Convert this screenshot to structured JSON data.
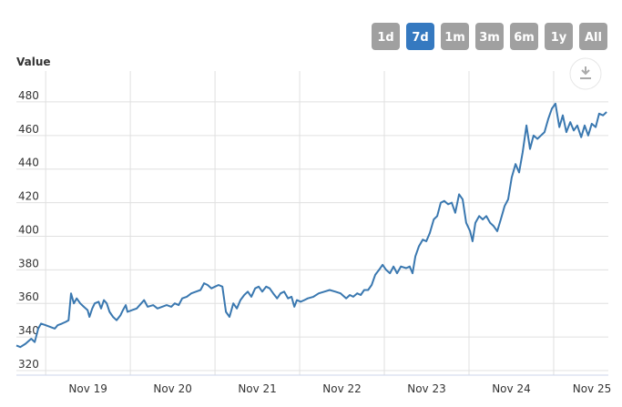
{
  "range_buttons": [
    {
      "label": "1d",
      "selected": false
    },
    {
      "label": "7d",
      "selected": true
    },
    {
      "label": "1m",
      "selected": false
    },
    {
      "label": "3m",
      "selected": false
    },
    {
      "label": "6m",
      "selected": false
    },
    {
      "label": "1y",
      "selected": false
    },
    {
      "label": "All",
      "selected": false
    }
  ],
  "chart_data": {
    "type": "line",
    "y_axis_title": "Value",
    "x": [
      -8.3,
      -7.2,
      -5.7,
      -4.1,
      -3.1,
      -2.1,
      -1.3,
      0,
      1.3,
      2.6,
      3.4,
      4.6,
      5.7,
      6.5,
      7.2,
      8.0,
      8.8,
      9.8,
      10.8,
      11.9,
      12.4,
      13.2,
      13.9,
      15.0,
      15.7,
      16.5,
      17.3,
      18.1,
      19.1,
      20.1,
      21.2,
      21.9,
      22.7,
      23.2,
      24.5,
      25.8,
      27.1,
      27.9,
      28.9,
      30.5,
      31.7,
      33.0,
      34.3,
      35.6,
      36.6,
      37.7,
      38.7,
      40.0,
      41.3,
      42.6,
      43.9,
      44.9,
      45.9,
      47.0,
      48.0,
      49.0,
      50.1,
      51.1,
      52.1,
      53.2,
      54.2,
      55.2,
      56.3,
      57.3,
      58.3,
      59.4,
      60.4,
      61.4,
      62.5,
      63.5,
      64.5,
      65.6,
      66.6,
      67.6,
      68.7,
      69.7,
      70.5,
      71.2,
      72.3,
      73.3,
      74.3,
      75.9,
      77.4,
      79.0,
      80.5,
      82.1,
      83.6,
      85.2,
      86.2,
      87.2,
      88.3,
      89.3,
      90.3,
      91.4,
      92.4,
      93.4,
      94.5,
      95.5,
      96.5,
      97.6,
      98.6,
      99.6,
      100.7,
      102.2,
      103.2,
      104.0,
      104.8,
      105.8,
      106.9,
      107.9,
      108.9,
      110.0,
      111.0,
      112.0,
      113.0,
      114.1,
      115.1,
      116.1,
      117.2,
      118.2,
      119.2,
      120.3,
      121.0,
      121.8,
      122.9,
      123.9,
      124.9,
      126.0,
      127.0,
      128.0,
      129.0,
      130.1,
      131.1,
      132.1,
      133.2,
      134.2,
      135.2,
      136.3,
      137.3,
      138.3,
      139.4,
      140.4,
      141.4,
      142.5,
      143.5,
      144.5,
      145.6,
      146.6,
      147.6,
      148.7,
      149.7,
      150.7,
      151.8,
      152.8,
      153.8,
      154.8,
      155.9,
      156.9,
      158.0,
      159.0
    ],
    "series": [
      {
        "color": "#3a78b0",
        "values": [
          335,
          334,
          336,
          339,
          337,
          345,
          348,
          347,
          346,
          345,
          347,
          348,
          349,
          350,
          366,
          360,
          363,
          360,
          358,
          356,
          352,
          357,
          360,
          361,
          357,
          362,
          360,
          355,
          352,
          350,
          353,
          356,
          359,
          355,
          356,
          357,
          360,
          362,
          358,
          359,
          357,
          358,
          359,
          358,
          360,
          359,
          363,
          364,
          366,
          367,
          368,
          372,
          371,
          369,
          370,
          371,
          370,
          355,
          352,
          360,
          357,
          362,
          365,
          367,
          364,
          369,
          370,
          367,
          370,
          369,
          366,
          363,
          366,
          367,
          363,
          364,
          358,
          362,
          361,
          362,
          363,
          364,
          366,
          367,
          368,
          367,
          366,
          363,
          365,
          364,
          366,
          365,
          368,
          368,
          371,
          377,
          380,
          383,
          380,
          378,
          382,
          378,
          382,
          381,
          382,
          378,
          388,
          394,
          398,
          397,
          402,
          410,
          412,
          420,
          421,
          419,
          420,
          414,
          425,
          422,
          408,
          403,
          397,
          408,
          412,
          410,
          412,
          408,
          406,
          403,
          410,
          418,
          422,
          435,
          443,
          438,
          450,
          466,
          452,
          460,
          458,
          460,
          462,
          470,
          476,
          479,
          465,
          472,
          462,
          468,
          463,
          466,
          459,
          466,
          460,
          467,
          465,
          473,
          472,
          474
        ]
      }
    ],
    "xlim": [
      -8.3,
      159.5
    ],
    "xticks": [
      {
        "value": 0,
        "label": "Nov 19"
      },
      {
        "value": 24,
        "label": "Nov 20"
      },
      {
        "value": 48,
        "label": "Nov 21"
      },
      {
        "value": 72,
        "label": "Nov 22"
      },
      {
        "value": 96,
        "label": "Nov 23"
      },
      {
        "value": 120,
        "label": "Nov 24"
      },
      {
        "value": 144,
        "label": "Nov 25"
      }
    ],
    "ylim": [
      317.3,
      498.4
    ],
    "yticks": [
      320,
      340,
      360,
      380,
      400,
      420,
      440,
      460,
      480
    ],
    "grid": true
  }
}
